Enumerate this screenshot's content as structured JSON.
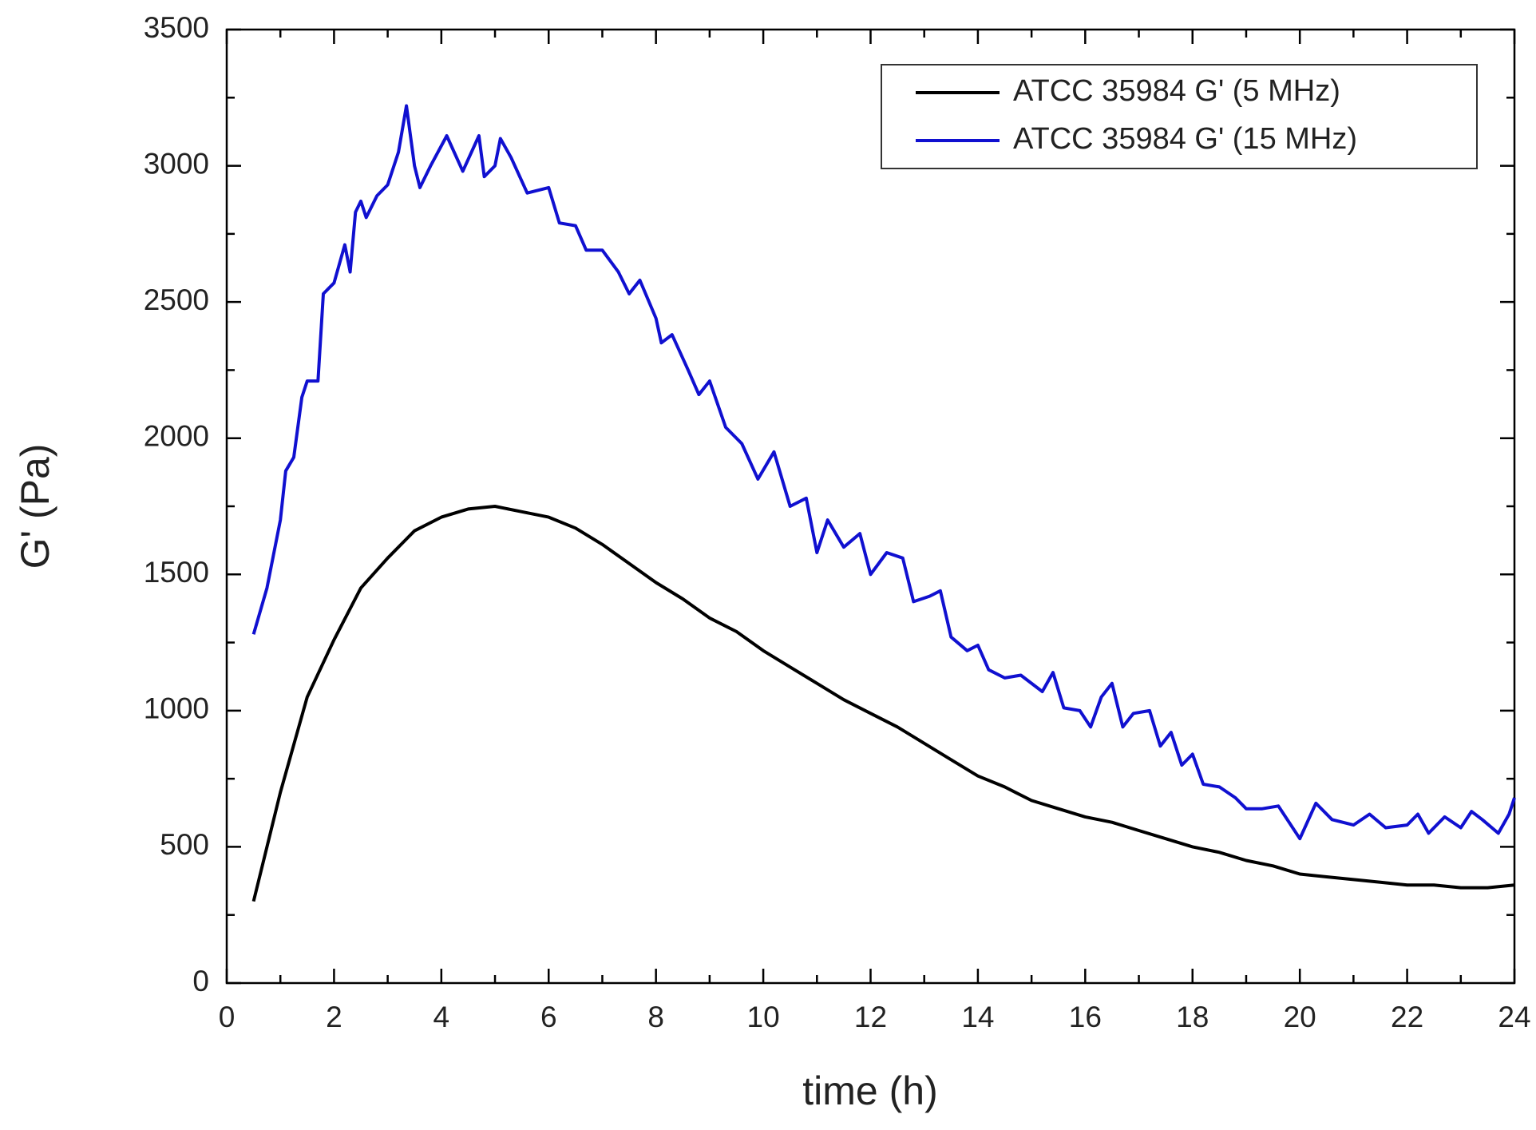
{
  "chart_data": {
    "type": "line",
    "xlabel": "time (h)",
    "ylabel": "G' (Pa)",
    "xlim": [
      0,
      24
    ],
    "xticks": [
      0,
      2,
      4,
      6,
      8,
      10,
      12,
      14,
      16,
      18,
      20,
      22,
      24
    ],
    "ylim": [
      0,
      3500
    ],
    "yticks": [
      0,
      500,
      1000,
      1500,
      2000,
      2500,
      3000,
      3500
    ],
    "legend": "upper right",
    "series": [
      {
        "name": "ATCC 35984 G' (5 MHz)",
        "color": "#000000",
        "x": [
          0.5,
          1,
          1.5,
          2,
          2.5,
          3,
          3.5,
          4,
          4.5,
          5,
          5.5,
          6,
          6.5,
          7,
          7.5,
          8,
          8.5,
          9,
          9.5,
          10,
          10.5,
          11,
          11.5,
          12,
          12.5,
          13,
          13.5,
          14,
          14.5,
          15,
          15.5,
          16,
          16.5,
          17,
          17.5,
          18,
          18.5,
          19,
          19.5,
          20,
          20.5,
          21,
          21.5,
          22,
          22.5,
          23,
          23.5,
          24
        ],
        "values": [
          300,
          700,
          1050,
          1260,
          1450,
          1560,
          1660,
          1710,
          1740,
          1750,
          1730,
          1710,
          1670,
          1610,
          1540,
          1470,
          1410,
          1340,
          1290,
          1220,
          1160,
          1100,
          1040,
          990,
          940,
          880,
          820,
          760,
          720,
          670,
          640,
          610,
          590,
          560,
          530,
          500,
          480,
          450,
          430,
          400,
          390,
          380,
          370,
          360,
          360,
          350,
          350,
          360
        ]
      },
      {
        "name": "ATCC 35984 G' (15 MHz)",
        "color": "#1010d0",
        "x": [
          0.5,
          0.75,
          1,
          1.1,
          1.25,
          1.4,
          1.5,
          1.7,
          1.8,
          2,
          2.2,
          2.3,
          2.4,
          2.5,
          2.6,
          2.8,
          3,
          3.2,
          3.35,
          3.5,
          3.6,
          3.8,
          4.1,
          4.4,
          4.7,
          4.8,
          5,
          5.1,
          5.3,
          5.6,
          6,
          6.2,
          6.5,
          6.7,
          7,
          7.3,
          7.5,
          7.7,
          8,
          8.1,
          8.3,
          8.6,
          8.8,
          9,
          9.3,
          9.6,
          9.9,
          10.2,
          10.5,
          10.8,
          11,
          11.2,
          11.5,
          11.8,
          12,
          12.3,
          12.6,
          12.8,
          13.1,
          13.3,
          13.5,
          13.8,
          14,
          14.2,
          14.5,
          14.8,
          15.2,
          15.4,
          15.6,
          15.9,
          16.1,
          16.3,
          16.5,
          16.7,
          16.9,
          17.2,
          17.4,
          17.6,
          17.8,
          18,
          18.2,
          18.5,
          18.8,
          19,
          19.3,
          19.6,
          20,
          20.3,
          20.6,
          21,
          21.3,
          21.6,
          22,
          22.2,
          22.4,
          22.7,
          23,
          23.2,
          23.4,
          23.7,
          23.9,
          24
        ],
        "values": [
          1280,
          1450,
          1700,
          1880,
          1930,
          2150,
          2210,
          2210,
          2530,
          2570,
          2710,
          2610,
          2830,
          2870,
          2810,
          2890,
          2930,
          3050,
          3220,
          3000,
          2920,
          3000,
          3110,
          2980,
          3110,
          2960,
          3000,
          3100,
          3030,
          2900,
          2920,
          2790,
          2780,
          2690,
          2690,
          2610,
          2530,
          2580,
          2440,
          2350,
          2380,
          2250,
          2160,
          2210,
          2040,
          1980,
          1850,
          1950,
          1750,
          1780,
          1580,
          1700,
          1600,
          1650,
          1500,
          1580,
          1560,
          1400,
          1420,
          1440,
          1270,
          1220,
          1240,
          1150,
          1120,
          1130,
          1070,
          1140,
          1010,
          1000,
          940,
          1050,
          1100,
          940,
          990,
          1000,
          870,
          920,
          800,
          840,
          730,
          720,
          680,
          640,
          640,
          650,
          530,
          660,
          600,
          580,
          620,
          570,
          580,
          620,
          550,
          610,
          570,
          630,
          600,
          550,
          620,
          680
        ]
      }
    ]
  }
}
